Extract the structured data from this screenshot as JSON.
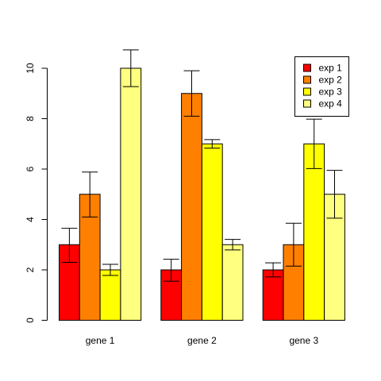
{
  "chart_data": {
    "type": "bar",
    "categories": [
      "gene 1",
      "gene 2",
      "gene 3"
    ],
    "series": [
      {
        "name": "exp 1",
        "color": "#ff0000",
        "values": [
          3,
          2,
          2
        ],
        "err_low": [
          2.3,
          1.55,
          1.72
        ],
        "err_high": [
          3.65,
          2.42,
          2.28
        ]
      },
      {
        "name": "exp 2",
        "color": "#ff8000",
        "values": [
          5,
          9,
          3
        ],
        "err_low": [
          4.1,
          8.1,
          2.15
        ],
        "err_high": [
          5.88,
          9.9,
          3.85
        ]
      },
      {
        "name": "exp 3",
        "color": "#ffff00",
        "values": [
          2,
          7,
          7
        ],
        "err_low": [
          1.78,
          6.83,
          6.02
        ],
        "err_high": [
          2.22,
          7.17,
          7.98
        ]
      },
      {
        "name": "exp 4",
        "color": "#ffff80",
        "values": [
          10,
          3,
          5
        ],
        "err_low": [
          9.27,
          2.79,
          4.05
        ],
        "err_high": [
          10.73,
          3.21,
          5.95
        ]
      }
    ],
    "yticks": [
      0,
      2,
      4,
      6,
      8,
      10
    ],
    "ylim": [
      0,
      11.6
    ],
    "legend_position": "top-right",
    "error_bars": true,
    "grid": false
  }
}
